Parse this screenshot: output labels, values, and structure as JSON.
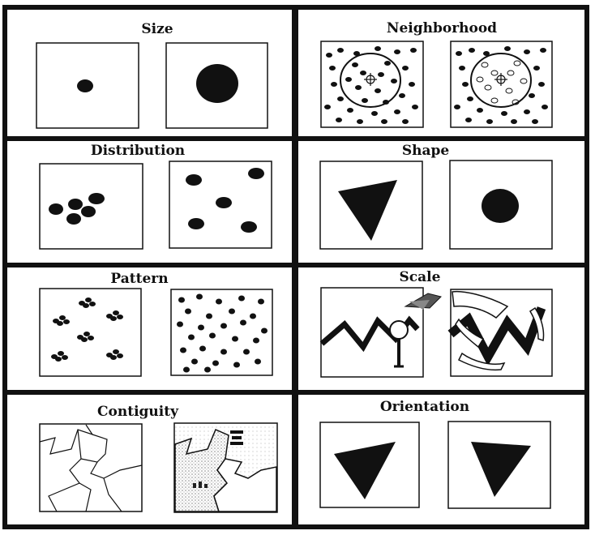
{
  "cells": [
    {
      "id": "size",
      "title": "Size"
    },
    {
      "id": "neighborhood",
      "title": "Neighborhood"
    },
    {
      "id": "distribution",
      "title": "Distribution"
    },
    {
      "id": "shape",
      "title": "Shape"
    },
    {
      "id": "pattern",
      "title": "Pattern"
    },
    {
      "id": "scale",
      "title": "Scale"
    },
    {
      "id": "contiguity",
      "title": "Contiguity"
    },
    {
      "id": "orientation",
      "title": "Orientation"
    }
  ],
  "colors": {
    "ink": "#111111",
    "paper": "#ffffff",
    "stipple": "#bbbbbb"
  }
}
